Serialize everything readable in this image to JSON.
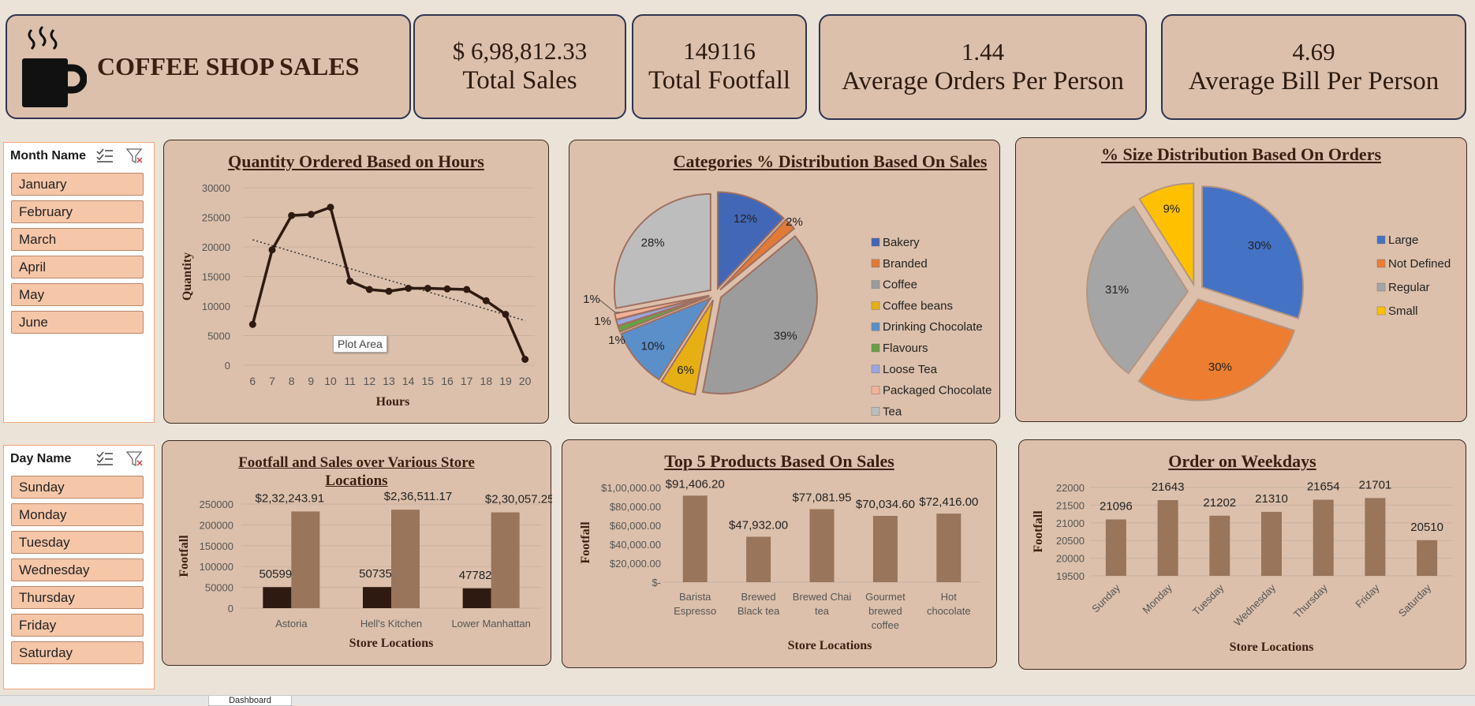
{
  "header": {
    "title": "COFFEE SHOP SALES",
    "icon": "coffee-cup-icon"
  },
  "kpis": [
    {
      "value": "$ 6,98,812.33",
      "label": "Total Sales"
    },
    {
      "value": "149116",
      "label": "Total Footfall"
    },
    {
      "value": "1.44",
      "label": "Average Orders Per Person"
    },
    {
      "value": "4.69",
      "label": "Average Bill Per Person"
    }
  ],
  "slicers": {
    "month": {
      "title": "Month Name",
      "items": [
        "January",
        "February",
        "March",
        "April",
        "May",
        "June"
      ]
    },
    "day": {
      "title": "Day Name",
      "items": [
        "Sunday",
        "Monday",
        "Tuesday",
        "Wednesday",
        "Thursday",
        "Friday",
        "Saturday"
      ]
    }
  },
  "tooltip": "Plot Area",
  "sheet_tab": "Dashboard",
  "colors": {
    "dark_brown": "#2e1a10",
    "bar_brown": "#98755b",
    "panel": "#dcc0ab",
    "background": "#ece3d8"
  },
  "chart_data": [
    {
      "id": "hours",
      "type": "line",
      "title": "Quantity Ordered Based on Hours",
      "xlabel": "Hours",
      "ylabel": "Quantity",
      "x": [
        6,
        7,
        8,
        9,
        10,
        11,
        12,
        13,
        14,
        15,
        16,
        17,
        18,
        19,
        20
      ],
      "values": [
        6900,
        19500,
        25300,
        25500,
        26700,
        14200,
        12800,
        12500,
        13000,
        13000,
        12900,
        12800,
        10900,
        8600,
        1000
      ],
      "trendline": true,
      "ylim": [
        0,
        30000
      ],
      "yticks": [
        "0",
        "5000",
        "10000",
        "15000",
        "20000",
        "25000",
        "30000"
      ],
      "grid": true
    },
    {
      "id": "categories",
      "type": "pie",
      "title": "Categories % Distribution Based On Sales",
      "categories": [
        "Bakery",
        "Branded",
        "Coffee",
        "Coffee beans",
        "Drinking Chocolate",
        "Flavours",
        "Loose Tea",
        "Packaged Chocolate",
        "Tea"
      ],
      "values": [
        12,
        2,
        39,
        6,
        10,
        1,
        1,
        1,
        28
      ],
      "labels": [
        "12%",
        "2%",
        "39%",
        "6%",
        "10%",
        "1%",
        "1%",
        "1%",
        "28%"
      ],
      "colors": [
        "#4267b7",
        "#e07a36",
        "#9c9c9c",
        "#e6b014",
        "#5a8fc9",
        "#6a9e45",
        "#9aa6de",
        "#f2b29a",
        "#bdbdbd"
      ],
      "legend": "right"
    },
    {
      "id": "sizes",
      "type": "pie",
      "title": "% Size Distribution Based On Orders",
      "categories": [
        "Large",
        "Not Defined",
        "Regular",
        "Small"
      ],
      "values": [
        30,
        30,
        31,
        9
      ],
      "labels": [
        "30%",
        "30%",
        "31%",
        "9%"
      ],
      "colors": [
        "#4472c4",
        "#ed7d31",
        "#a5a5a5",
        "#ffc000"
      ],
      "legend": "right"
    },
    {
      "id": "stores",
      "type": "bar",
      "title": "Footfall and Sales over Various Store Locations",
      "xlabel": "Store Locations",
      "ylabel": "Footfall",
      "categories": [
        "Astoria",
        "Hell's Kitchen",
        "Lower Manhattan"
      ],
      "series": [
        {
          "values": [
            50599,
            50735,
            47782
          ],
          "labels": [
            "50599",
            "50735",
            "47782"
          ]
        },
        {
          "values": [
            232243.91,
            236511.17,
            230057.25
          ],
          "labels": [
            "$2,32,243.91",
            "$2,36,511.17",
            "$2,30,057.25"
          ]
        }
      ],
      "ylim": [
        0,
        250000
      ],
      "yticks": [
        "0",
        "50000",
        "100000",
        "150000",
        "200000",
        "250000"
      ]
    },
    {
      "id": "products",
      "type": "bar",
      "title": "Top 5 Products Based On Sales",
      "xlabel": "Store Locations",
      "ylabel": "Footfall",
      "categories": [
        "Barista Espresso",
        "Brewed Black tea",
        "Brewed Chai tea",
        "Gourmet brewed coffee",
        "Hot chocolate"
      ],
      "values": [
        91406.2,
        47932.0,
        77081.95,
        70034.6,
        72416.0
      ],
      "labels": [
        "$91,406.20",
        "$47,932.00",
        "$77,081.95",
        "$70,034.60",
        "$72,416.00"
      ],
      "ylim": [
        0,
        100000
      ],
      "yticks": [
        "$-",
        "$20,000.00",
        "$40,000.00",
        "$60,000.00",
        "$80,000.00",
        "$1,00,000.00"
      ]
    },
    {
      "id": "weekdays",
      "type": "bar",
      "title": "Order on Weekdays",
      "xlabel": "Store Locations",
      "ylabel": "Footfall",
      "categories": [
        "Sunday",
        "Monday",
        "Tuesday",
        "Wednesday",
        "Thursday",
        "Friday",
        "Saturday"
      ],
      "values": [
        21096,
        21643,
        21202,
        21310,
        21654,
        21701,
        20510
      ],
      "ylim": [
        19500,
        22000
      ],
      "yticks": [
        "19500",
        "20000",
        "20500",
        "21000",
        "21500",
        "22000"
      ]
    }
  ]
}
